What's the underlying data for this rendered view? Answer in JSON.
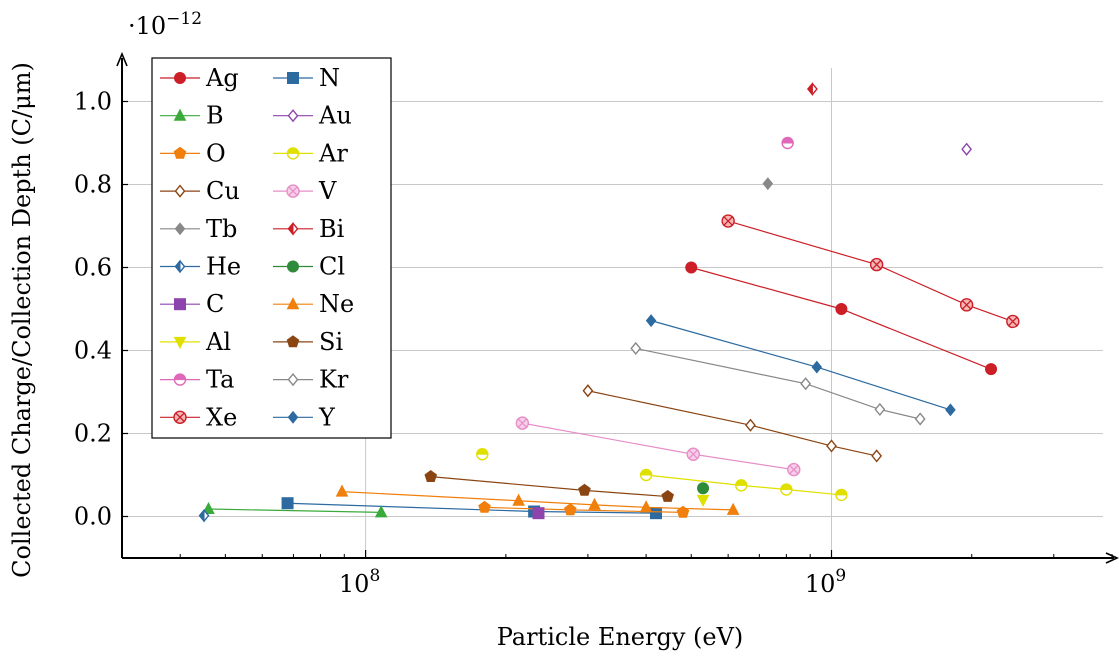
{
  "chart_data": {
    "type": "line",
    "xlabel": "Particle Energy (eV)",
    "ylabel": "Collected Charge/Collection Depth (C/μm)",
    "y_multiplier": "·10",
    "y_multiplier_exp": "−12",
    "x_scale": "log",
    "xlim": [
      30000000,
      4000000000
    ],
    "ylim": [
      -0.1,
      1.1
    ],
    "x_ticks": [
      {
        "value": 100000000,
        "mantissa": "10",
        "exp": "8"
      },
      {
        "value": 1000000000,
        "mantissa": "10",
        "exp": "9"
      }
    ],
    "y_ticks": [
      {
        "value": 0.0,
        "label": "0.0"
      },
      {
        "value": 0.2,
        "label": "0.2"
      },
      {
        "value": 0.4,
        "label": "0.4"
      },
      {
        "value": 0.6,
        "label": "0.6"
      },
      {
        "value": 0.8,
        "label": "0.8"
      },
      {
        "value": 1.0,
        "label": "1.0"
      }
    ],
    "grid": true,
    "legend_position": "top-left",
    "series": [
      {
        "name": "Ag",
        "color": "#cc1f27",
        "marker": "circle",
        "points": [
          [
            500000000,
            0.6
          ],
          [
            1050000000,
            0.5
          ],
          [
            2200000000,
            0.355
          ]
        ]
      },
      {
        "name": "N",
        "color": "#2c6aa0",
        "marker": "square",
        "points": [
          [
            68000000,
            0.032
          ],
          [
            230000000,
            0.012
          ],
          [
            420000000,
            0.008
          ]
        ]
      },
      {
        "name": "B",
        "color": "#3aaa3a",
        "marker": "triangle",
        "points": [
          [
            46000000,
            0.018
          ],
          [
            108000000,
            0.01
          ]
        ]
      },
      {
        "name": "Au",
        "color": "#8e44ad",
        "marker": "diamond-open",
        "points": [
          [
            1950000000,
            0.885
          ]
        ]
      },
      {
        "name": "O",
        "color": "#f07f0c",
        "marker": "pentagon",
        "points": [
          [
            180000000,
            0.022
          ],
          [
            275000000,
            0.016
          ],
          [
            480000000,
            0.01
          ]
        ]
      },
      {
        "name": "Ar",
        "color": "#e0e000",
        "marker": "circle-half",
        "points": [
          [
            400000000,
            0.1
          ],
          [
            640000000,
            0.075
          ],
          [
            800000000,
            0.065
          ],
          [
            1050000000,
            0.052
          ]
        ]
      },
      {
        "name": "Cu",
        "color": "#8b4513",
        "marker": "diamond-open",
        "points": [
          [
            300000000,
            0.303
          ],
          [
            670000000,
            0.22
          ],
          [
            1000000000,
            0.17
          ],
          [
            1250000000,
            0.146
          ]
        ]
      },
      {
        "name": "V",
        "color": "#e68fc8",
        "marker": "circle-x-light",
        "points": [
          [
            217000000,
            0.225
          ],
          [
            505000000,
            0.15
          ],
          [
            830000000,
            0.113
          ]
        ]
      },
      {
        "name": "Tb",
        "color": "#888888",
        "marker": "diamond-filled",
        "points": [
          [
            730000000,
            0.802
          ]
        ]
      },
      {
        "name": "Bi",
        "color": "#cc1f27",
        "marker": "diamond-half",
        "points": [
          [
            910000000,
            1.03
          ]
        ]
      },
      {
        "name": "He",
        "color": "#2c6aa0",
        "marker": "diamond-half",
        "points": [
          [
            45000000,
            0.002
          ]
        ]
      },
      {
        "name": "Cl",
        "color": "#2e8b3a",
        "marker": "circle",
        "points": [
          [
            530000000,
            0.068
          ]
        ]
      },
      {
        "name": "C",
        "color": "#8e44ad",
        "marker": "square",
        "points": [
          [
            235000000,
            0.008
          ]
        ]
      },
      {
        "name": "Ne",
        "color": "#f07f0c",
        "marker": "triangle",
        "points": [
          [
            89000000,
            0.06
          ],
          [
            213000000,
            0.038
          ],
          [
            310000000,
            0.028
          ],
          [
            400000000,
            0.022
          ],
          [
            615000000,
            0.016
          ]
        ]
      },
      {
        "name": "Al",
        "color": "#e0e000",
        "marker": "triangle-down",
        "points": [
          [
            530000000,
            0.04
          ]
        ]
      },
      {
        "name": "Si",
        "color": "#8b4513",
        "marker": "pentagon",
        "points": [
          [
            138000000,
            0.096
          ],
          [
            295000000,
            0.063
          ],
          [
            445000000,
            0.048
          ]
        ]
      },
      {
        "name": "Ta",
        "color": "#e068b8",
        "marker": "circle-half",
        "points": [
          [
            805000000,
            0.9
          ]
        ]
      },
      {
        "name": "Kr",
        "color": "#888888",
        "marker": "diamond-open",
        "points": [
          [
            380000000,
            0.405
          ],
          [
            880000000,
            0.32
          ],
          [
            1270000000,
            0.258
          ],
          [
            1550000000,
            0.235
          ]
        ]
      },
      {
        "name": "Xe",
        "color": "#cc1f27",
        "marker": "circle-x",
        "points": [
          [
            600000000,
            0.712
          ],
          [
            1250000000,
            0.607
          ],
          [
            1950000000,
            0.51
          ],
          [
            2450000000,
            0.47
          ]
        ]
      },
      {
        "name": "Y",
        "color": "#2c6aa0",
        "marker": "diamond-filled",
        "points": [
          [
            410000000,
            0.472
          ],
          [
            930000000,
            0.36
          ],
          [
            1800000000,
            0.257
          ]
        ]
      }
    ],
    "extra_points": [
      {
        "series": "Ar",
        "color": "#e0e000",
        "marker": "circle-half",
        "points": [
          [
            178000000,
            0.15
          ]
        ]
      }
    ]
  }
}
